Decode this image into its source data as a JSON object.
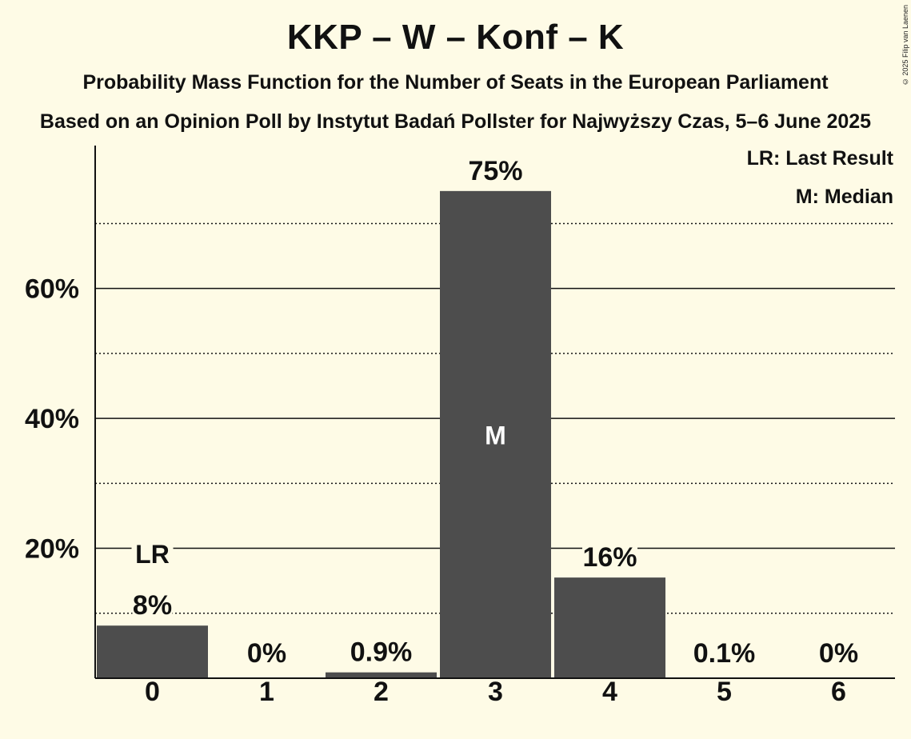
{
  "header": {
    "title": "KKP – W – Konf – K",
    "subtitle1": "Probability Mass Function for the Number of Seats in the European Parliament",
    "subtitle2": "Based on an Opinion Poll by Instytut Badań Pollster for Najwyższy Czas, 5–6 June 2025",
    "copyright": "© 2025 Filip van Laenen"
  },
  "legend": {
    "last_result": "LR: Last Result",
    "median": "M: Median"
  },
  "colors": {
    "background": "#fefbe6",
    "bar": "#4d4d4d",
    "text": "#111111"
  },
  "chart_data": {
    "type": "bar",
    "categories": [
      "0",
      "1",
      "2",
      "3",
      "4",
      "5",
      "6"
    ],
    "values": [
      8.1,
      0,
      0.9,
      75,
      15.5,
      0.1,
      0
    ],
    "value_labels": [
      "8%",
      "0%",
      "0.9%",
      "75%",
      "16%",
      "0.1%",
      "0%"
    ],
    "ylim": [
      0,
      82
    ],
    "yticks": [
      20,
      40,
      60
    ],
    "ytick_labels": [
      "20%",
      "40%",
      "60%"
    ],
    "minor_gridlines": [
      10,
      30,
      50,
      70
    ],
    "last_result_index": 0,
    "last_result_marker": "LR",
    "median_index": 3,
    "median_marker": "M"
  }
}
